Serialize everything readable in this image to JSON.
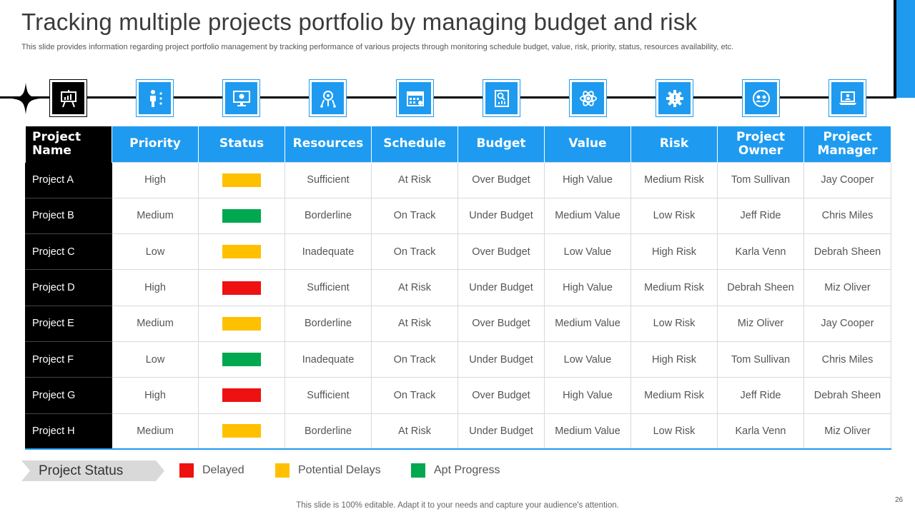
{
  "slide": {
    "title": "Tracking multiple projects portfolio by managing budget and risk",
    "subtitle": "This slide provides information regarding project portfolio management by tracking performance of various projects through monitoring schedule budget, value, risk, priority,  status, resources availability, etc.",
    "footer": "This slide is 100% editable. Adapt it to your needs and capture your audience's attention.",
    "page_number": "26"
  },
  "icons": [
    "presentation-board-icon",
    "team-flow-icon",
    "monitor-icon",
    "network-hub-icon",
    "calendar-icon",
    "budget-report-icon",
    "atom-value-icon",
    "gear-risk-icon",
    "owner-users-icon",
    "manager-laptop-icon"
  ],
  "colors": {
    "accent": "#1e9bf0",
    "delayed": "#ee1111",
    "potential_delays": "#ffc000",
    "apt_progress": "#00a84f"
  },
  "table": {
    "headers": [
      "Project Name",
      "Priority",
      "Status",
      "Resources",
      "Schedule",
      "Budget",
      "Value",
      "Risk",
      "Project Owner",
      "Project Manager"
    ],
    "rows": [
      {
        "name": "Project A",
        "priority": "High",
        "status": "potential_delays",
        "resources": "Sufficient",
        "schedule": "At Risk",
        "budget": "Over Budget",
        "value": "High Value",
        "risk": "Medium Risk",
        "owner": "Tom Sullivan",
        "manager": "Jay Cooper"
      },
      {
        "name": "Project B",
        "priority": "Medium",
        "status": "apt_progress",
        "resources": "Borderline",
        "schedule": "On Track",
        "budget": "Under Budget",
        "value": "Medium Value",
        "risk": "Low Risk",
        "owner": "Jeff Ride",
        "manager": "Chris Miles"
      },
      {
        "name": "Project C",
        "priority": "Low",
        "status": "potential_delays",
        "resources": "Inadequate",
        "schedule": "On Track",
        "budget": "Over Budget",
        "value": "Low Value",
        "risk": "High Risk",
        "owner": "Karla Venn",
        "manager": "Debrah Sheen"
      },
      {
        "name": "Project D",
        "priority": "High",
        "status": "delayed",
        "resources": "Sufficient",
        "schedule": "At Risk",
        "budget": "Under Budget",
        "value": "High Value",
        "risk": "Medium Risk",
        "owner": "Debrah Sheen",
        "manager": "Miz Oliver"
      },
      {
        "name": "Project E",
        "priority": "Medium",
        "status": "potential_delays",
        "resources": "Borderline",
        "schedule": "At Risk",
        "budget": "Over Budget",
        "value": "Medium Value",
        "risk": "Low Risk",
        "owner": "Miz Oliver",
        "manager": "Jay Cooper"
      },
      {
        "name": "Project F",
        "priority": "Low",
        "status": "apt_progress",
        "resources": "Inadequate",
        "schedule": "On Track",
        "budget": "Under Budget",
        "value": "Low Value",
        "risk": "High Risk",
        "owner": "Tom Sullivan",
        "manager": "Chris Miles"
      },
      {
        "name": "Project G",
        "priority": "High",
        "status": "delayed",
        "resources": "Sufficient",
        "schedule": "On Track",
        "budget": "Over Budget",
        "value": "High Value",
        "risk": "Medium Risk",
        "owner": "Jeff Ride",
        "manager": "Debrah Sheen"
      },
      {
        "name": "Project H",
        "priority": "Medium",
        "status": "potential_delays",
        "resources": "Borderline",
        "schedule": "At Risk",
        "budget": "Under Budget",
        "value": "Medium Value",
        "risk": "Low Risk",
        "owner": "Karla Venn",
        "manager": "Miz Oliver"
      }
    ]
  },
  "legend": {
    "label": "Project Status",
    "items": [
      {
        "key": "delayed",
        "label": "Delayed"
      },
      {
        "key": "potential_delays",
        "label": "Potential Delays"
      },
      {
        "key": "apt_progress",
        "label": "Apt Progress"
      }
    ]
  }
}
